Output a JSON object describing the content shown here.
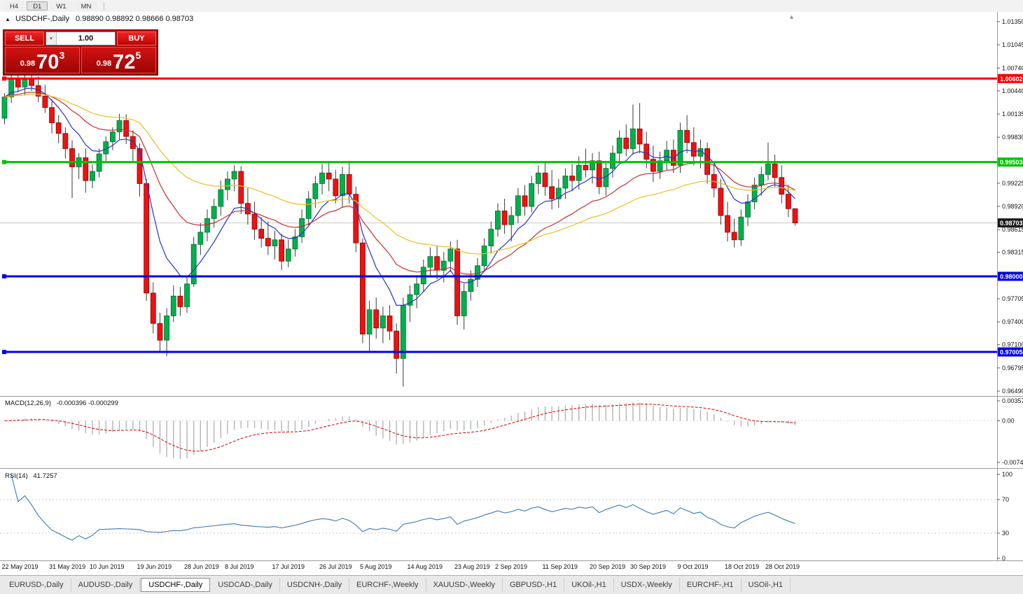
{
  "toolbar": {
    "timeframes": [
      {
        "label": "H4",
        "active": false
      },
      {
        "label": "D1",
        "active": true
      },
      {
        "label": "W1",
        "active": false
      },
      {
        "label": "MN",
        "active": false
      }
    ]
  },
  "chart": {
    "title": {
      "symbol": "USDCHF-,Daily",
      "ohlc": "0.98890 0.98892 0.98666 0.98703"
    }
  },
  "icons": {
    "panel_toggle": "▲",
    "spinner_down": "▾",
    "shift_marker": "▴"
  },
  "trade_panel": {
    "sell_label": "SELL",
    "buy_label": "BUY",
    "volume": "1.00",
    "sell_price": {
      "prefix": "0.98",
      "pips": "70",
      "point": "3"
    },
    "buy_price": {
      "prefix": "0.98",
      "pips": "72",
      "point": "5"
    }
  },
  "price_axis": {
    "bid": 0.98703,
    "ticks": [
      "1.01350",
      "1.01045",
      "1.00740",
      "1.00440",
      "1.00135",
      "0.99830",
      "0.99225",
      "0.98920",
      "0.98615",
      "0.98315",
      "0.97705",
      "0.97400",
      "0.97100",
      "0.96795",
      "0.96490"
    ],
    "tags": [
      {
        "text": "1.00602",
        "value": 1.00602,
        "bg": "#F80000"
      },
      {
        "text": "0.99503",
        "value": 0.99503,
        "bg": "#00C400"
      },
      {
        "text": "0.98703",
        "value": 0.98703,
        "bg": "#1A1A1A"
      },
      {
        "text": "0.98000",
        "value": 0.98,
        "bg": "#0000E8"
      },
      {
        "text": "0.97005",
        "value": 0.97005,
        "bg": "#0000E8"
      }
    ]
  },
  "levels": [
    {
      "value": 1.00602,
      "color": "#F80000"
    },
    {
      "value": 0.99503,
      "color": "#00C400"
    },
    {
      "value": 0.98,
      "color": "#0000E8"
    },
    {
      "value": 0.97005,
      "color": "#0000E8"
    }
  ],
  "colors": {
    "candle_up": "#00B04C",
    "candle_up_border": "#006B2D",
    "candle_down": "#EE1111",
    "candle_down_border": "#8E0000",
    "wick": "#3A3A3A",
    "ma_fast": "#2233CC",
    "ma_mid": "#C23030",
    "ma_slow": "#E8C020",
    "macd_bar": "#B4B4B4",
    "macd_signal": "#D40000",
    "rsi_line": "#3C78B4",
    "bid_line": "#C8C8C8",
    "separator": "#9A9A9A"
  },
  "indicators": {
    "macd": {
      "label": "MACD(12,26,9)",
      "values_text": "-0.000396 -0.000299",
      "axis": [
        "0.003574",
        "0.00",
        "-0.00749"
      ],
      "fast": 12,
      "slow": 26,
      "signal": 9
    },
    "rsi": {
      "label": "RSI(14)",
      "value_text": "41.7257",
      "axis": [
        "100",
        "70",
        "30",
        "0"
      ],
      "period": 14,
      "level_lines": [
        70,
        30
      ]
    }
  },
  "chart_data": {
    "type": "candlestick",
    "symbol": "USDCHF-",
    "timeframe": "Daily",
    "ylim": [
      0.9649,
      1.0135
    ],
    "candles": [
      [
        1.0008,
        1.0041,
        1.0,
        1.0036
      ],
      [
        1.0036,
        1.0071,
        1.0028,
        1.0061
      ],
      [
        1.0061,
        1.0074,
        1.0042,
        1.0049
      ],
      [
        1.0049,
        1.0066,
        1.0038,
        1.0059
      ],
      [
        1.0059,
        1.0069,
        1.0044,
        1.0051
      ],
      [
        1.0051,
        1.0063,
        1.0029,
        1.0037
      ],
      [
        1.0037,
        1.0052,
        1.0015,
        1.0022
      ],
      [
        1.0022,
        1.0033,
        0.9988,
        1.0002
      ],
      [
        1.0002,
        1.0012,
        0.9975,
        0.9988
      ],
      [
        0.9988,
        0.9996,
        0.9955,
        0.9968
      ],
      [
        0.9968,
        0.9979,
        0.9903,
        0.9944
      ],
      [
        0.9944,
        0.9962,
        0.9928,
        0.9956
      ],
      [
        0.9956,
        0.9968,
        0.991,
        0.9926
      ],
      [
        0.9926,
        0.9947,
        0.9916,
        0.9938
      ],
      [
        0.9938,
        0.9968,
        0.993,
        0.9961
      ],
      [
        0.9961,
        0.9984,
        0.9952,
        0.9977
      ],
      [
        0.9977,
        0.9996,
        0.9966,
        0.999
      ],
      [
        0.999,
        1.0014,
        0.998,
        1.0005
      ],
      [
        1.0005,
        1.0013,
        0.9974,
        0.9984
      ],
      [
        0.9984,
        0.9992,
        0.9952,
        0.9968
      ],
      [
        0.9968,
        0.9975,
        0.9905,
        0.9922
      ],
      [
        0.9922,
        0.9928,
        0.9768,
        0.9778
      ],
      [
        0.9778,
        0.9792,
        0.9725,
        0.9738
      ],
      [
        0.9738,
        0.9752,
        0.9702,
        0.9716
      ],
      [
        0.9716,
        0.9758,
        0.9695,
        0.9748
      ],
      [
        0.9748,
        0.9788,
        0.974,
        0.9774
      ],
      [
        0.9774,
        0.9786,
        0.9748,
        0.976
      ],
      [
        0.976,
        0.9798,
        0.9752,
        0.979
      ],
      [
        0.979,
        0.9852,
        0.9786,
        0.9842
      ],
      [
        0.9842,
        0.987,
        0.9828,
        0.9858
      ],
      [
        0.9858,
        0.9888,
        0.9846,
        0.9876
      ],
      [
        0.9876,
        0.9902,
        0.9864,
        0.9892
      ],
      [
        0.9892,
        0.9926,
        0.988,
        0.9914
      ],
      [
        0.9914,
        0.9938,
        0.99,
        0.9928
      ],
      [
        0.9928,
        0.9946,
        0.9912,
        0.9938
      ],
      [
        0.9938,
        0.9945,
        0.9882,
        0.9896
      ],
      [
        0.9896,
        0.9916,
        0.9868,
        0.9882
      ],
      [
        0.9882,
        0.9898,
        0.9848,
        0.9862
      ],
      [
        0.9862,
        0.9878,
        0.9838,
        0.985
      ],
      [
        0.985,
        0.9872,
        0.9828,
        0.984
      ],
      [
        0.984,
        0.986,
        0.9822,
        0.9848
      ],
      [
        0.9848,
        0.9856,
        0.9808,
        0.982
      ],
      [
        0.982,
        0.9848,
        0.9812,
        0.9836
      ],
      [
        0.9836,
        0.9862,
        0.9826,
        0.9852
      ],
      [
        0.9852,
        0.9888,
        0.9844,
        0.9876
      ],
      [
        0.9876,
        0.9912,
        0.9866,
        0.9902
      ],
      [
        0.9902,
        0.9932,
        0.989,
        0.9922
      ],
      [
        0.9922,
        0.9948,
        0.9908,
        0.9936
      ],
      [
        0.9936,
        0.995,
        0.9912,
        0.9928
      ],
      [
        0.9928,
        0.994,
        0.9896,
        0.9906
      ],
      [
        0.9906,
        0.9944,
        0.989,
        0.9934
      ],
      [
        0.9934,
        0.9952,
        0.9896,
        0.9908
      ],
      [
        0.9908,
        0.9918,
        0.9832,
        0.9844
      ],
      [
        0.9844,
        0.985,
        0.9712,
        0.9724
      ],
      [
        0.9724,
        0.9768,
        0.97,
        0.9756
      ],
      [
        0.9756,
        0.9772,
        0.9718,
        0.9732
      ],
      [
        0.9732,
        0.976,
        0.9712,
        0.9748
      ],
      [
        0.9748,
        0.9762,
        0.9716,
        0.9728
      ],
      [
        0.9728,
        0.9738,
        0.9672,
        0.9692
      ],
      [
        0.9692,
        0.9772,
        0.9655,
        0.9762
      ],
      [
        0.9762,
        0.9788,
        0.974,
        0.9776
      ],
      [
        0.9776,
        0.98,
        0.9758,
        0.979
      ],
      [
        0.979,
        0.9822,
        0.978,
        0.9812
      ],
      [
        0.9812,
        0.9838,
        0.98,
        0.9826
      ],
      [
        0.9826,
        0.984,
        0.9796,
        0.9808
      ],
      [
        0.9808,
        0.9832,
        0.9792,
        0.982
      ],
      [
        0.982,
        0.9846,
        0.9806,
        0.9836
      ],
      [
        0.9836,
        0.9848,
        0.9736,
        0.9748
      ],
      [
        0.9748,
        0.979,
        0.973,
        0.978
      ],
      [
        0.978,
        0.9808,
        0.9768,
        0.9796
      ],
      [
        0.9796,
        0.9824,
        0.9786,
        0.9814
      ],
      [
        0.9814,
        0.985,
        0.9806,
        0.984
      ],
      [
        0.984,
        0.9872,
        0.983,
        0.9862
      ],
      [
        0.9862,
        0.9896,
        0.9852,
        0.9886
      ],
      [
        0.9886,
        0.9902,
        0.9856,
        0.9868
      ],
      [
        0.9868,
        0.9892,
        0.9846,
        0.988
      ],
      [
        0.988,
        0.9916,
        0.987,
        0.9906
      ],
      [
        0.9906,
        0.992,
        0.988,
        0.9892
      ],
      [
        0.9892,
        0.9932,
        0.9884,
        0.9922
      ],
      [
        0.9922,
        0.9946,
        0.9908,
        0.9936
      ],
      [
        0.9936,
        0.995,
        0.9906,
        0.9918
      ],
      [
        0.9918,
        0.994,
        0.9888,
        0.9902
      ],
      [
        0.9902,
        0.9928,
        0.989,
        0.9916
      ],
      [
        0.9916,
        0.9942,
        0.9902,
        0.9932
      ],
      [
        0.9932,
        0.9948,
        0.9912,
        0.9926
      ],
      [
        0.9926,
        0.9958,
        0.9914,
        0.9946
      ],
      [
        0.9946,
        0.9968,
        0.993,
        0.994
      ],
      [
        0.994,
        0.9962,
        0.9922,
        0.9952
      ],
      [
        0.9952,
        0.9964,
        0.9908,
        0.9918
      ],
      [
        0.9918,
        0.9952,
        0.9906,
        0.9942
      ],
      [
        0.9942,
        0.9972,
        0.993,
        0.9962
      ],
      [
        0.9962,
        0.9992,
        0.995,
        0.9982
      ],
      [
        0.9982,
        1.0,
        0.9958,
        0.9968
      ],
      [
        0.9968,
        1.0026,
        0.996,
        0.9994
      ],
      [
        0.9994,
        1.0028,
        0.9962,
        0.9974
      ],
      [
        0.9974,
        0.999,
        0.9942,
        0.9954
      ],
      [
        0.9954,
        0.9972,
        0.9924,
        0.9938
      ],
      [
        0.9938,
        0.9964,
        0.9928,
        0.9952
      ],
      [
        0.9952,
        0.9978,
        0.994,
        0.9966
      ],
      [
        0.9966,
        0.998,
        0.9936,
        0.9946
      ],
      [
        0.9946,
        1.0002,
        0.9936,
        0.9992
      ],
      [
        0.9992,
        1.0012,
        0.9962,
        0.9976
      ],
      [
        0.9976,
        0.9996,
        0.9946,
        0.9958
      ],
      [
        0.9958,
        0.998,
        0.9942,
        0.9968
      ],
      [
        0.9968,
        0.9976,
        0.9922,
        0.9934
      ],
      [
        0.9934,
        0.995,
        0.9904,
        0.9916
      ],
      [
        0.9916,
        0.9928,
        0.9868,
        0.988
      ],
      [
        0.988,
        0.9898,
        0.9846,
        0.9858
      ],
      [
        0.9858,
        0.9876,
        0.9838,
        0.9848
      ],
      [
        0.9848,
        0.9888,
        0.984,
        0.9878
      ],
      [
        0.9878,
        0.9908,
        0.9866,
        0.9898
      ],
      [
        0.9898,
        0.993,
        0.9888,
        0.992
      ],
      [
        0.992,
        0.9944,
        0.9906,
        0.9934
      ],
      [
        0.9934,
        0.9976,
        0.9926,
        0.9948
      ],
      [
        0.9948,
        0.996,
        0.9918,
        0.993
      ],
      [
        0.993,
        0.9946,
        0.9896,
        0.9908
      ],
      [
        0.9908,
        0.992,
        0.9878,
        0.9889
      ],
      [
        0.9889,
        0.98892,
        0.98666,
        0.98703
      ]
    ],
    "date_labels": [
      {
        "i": 0,
        "label": "22 May 2019"
      },
      {
        "i": 7,
        "label": "31 May 2019"
      },
      {
        "i": 13,
        "label": "10 Jun 2019"
      },
      {
        "i": 20,
        "label": "19 Jun 2019"
      },
      {
        "i": 27,
        "label": "28 Jun 2019"
      },
      {
        "i": 33,
        "label": "8 Jul 2019"
      },
      {
        "i": 40,
        "label": "17 Jul 2019"
      },
      {
        "i": 47,
        "label": "26 Jul 2019"
      },
      {
        "i": 53,
        "label": "5 Aug 2019"
      },
      {
        "i": 60,
        "label": "14 Aug 2019"
      },
      {
        "i": 67,
        "label": "23 Aug 2019"
      },
      {
        "i": 73,
        "label": "2 Sep 2019"
      },
      {
        "i": 80,
        "label": "11 Sep 2019"
      },
      {
        "i": 87,
        "label": "20 Sep 2019"
      },
      {
        "i": 93,
        "label": "30 Sep 2019"
      },
      {
        "i": 100,
        "label": "9 Oct 2019"
      },
      {
        "i": 107,
        "label": "18 Oct 2019"
      },
      {
        "i": 113,
        "label": "28 Oct 2019"
      }
    ]
  },
  "tabs": [
    {
      "label": "EURUSD-,Daily",
      "active": false
    },
    {
      "label": "AUDUSD-,Daily",
      "active": false
    },
    {
      "label": "USDCHF-,Daily",
      "active": true
    },
    {
      "label": "USDCAD-,Daily",
      "active": false
    },
    {
      "label": "USDCNH-,Daily",
      "active": false
    },
    {
      "label": "EURCHF-,Weekly",
      "active": false
    },
    {
      "label": "XAUUSD-,Weekly",
      "active": false
    },
    {
      "label": "GBPUSD-,H1",
      "active": false
    },
    {
      "label": "UKOil-,H1",
      "active": false
    },
    {
      "label": "USDX-,Weekly",
      "active": false
    },
    {
      "label": "EURCHF-,H1",
      "active": false
    },
    {
      "label": "USOil-,H1",
      "active": false
    }
  ]
}
